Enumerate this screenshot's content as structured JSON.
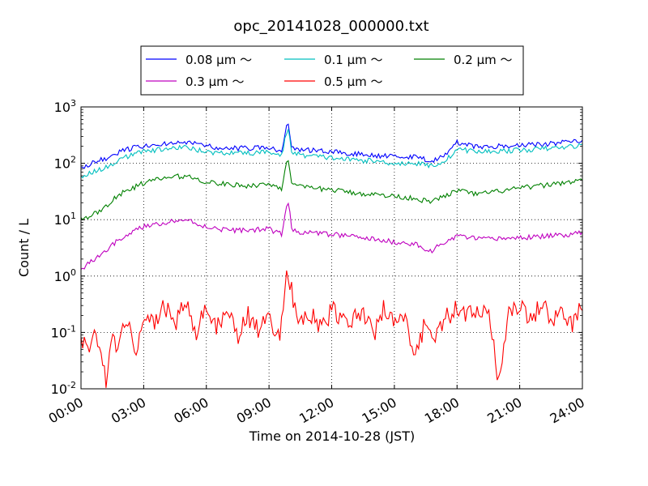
{
  "chart_data": {
    "type": "line",
    "title": "opc_20141028_000000.txt",
    "xlabel": "Time on 2014-10-28 (JST)",
    "ylabel": "Count / L",
    "x_ticks": [
      "00:00",
      "03:00",
      "06:00",
      "09:00",
      "12:00",
      "15:00",
      "18:00",
      "21:00",
      "24:00"
    ],
    "x_range_hours": [
      0,
      24
    ],
    "y_scale": "log",
    "ylim": [
      0.01,
      1000
    ],
    "y_ticks": [
      {
        "base": "10",
        "exp": "-2"
      },
      {
        "base": "10",
        "exp": "-1"
      },
      {
        "base": "10",
        "exp": "0"
      },
      {
        "base": "10",
        "exp": "1"
      },
      {
        "base": "10",
        "exp": "2"
      },
      {
        "base": "10",
        "exp": "3"
      }
    ],
    "grid": true,
    "legend_position": "top-center",
    "legend_columns": 3,
    "series": [
      {
        "name": "0.08 μm ～",
        "color": "#0000ff",
        "x": [
          0,
          0.5,
          1,
          1.5,
          2,
          3,
          4,
          5,
          6,
          7,
          8,
          9,
          9.6,
          9.9,
          10.1,
          10.5,
          11,
          12,
          13,
          14,
          15,
          16,
          16.8,
          17,
          17.5,
          18,
          19,
          20,
          21,
          22,
          23,
          24
        ],
        "y": [
          80,
          100,
          115,
          130,
          170,
          205,
          225,
          240,
          200,
          185,
          185,
          195,
          165,
          580,
          190,
          175,
          170,
          160,
          150,
          140,
          130,
          130,
          110,
          120,
          150,
          235,
          195,
          200,
          210,
          215,
          230,
          260
        ]
      },
      {
        "name": "0.1 μm ～",
        "color": "#00bfbf",
        "x": [
          0,
          0.5,
          1,
          1.5,
          2,
          3,
          4,
          5,
          6,
          7,
          8,
          9,
          9.6,
          9.9,
          10.1,
          10.5,
          11,
          12,
          13,
          14,
          15,
          16,
          16.8,
          17,
          17.5,
          18,
          19,
          20,
          21,
          22,
          23,
          24
        ],
        "y": [
          55,
          70,
          80,
          95,
          125,
          160,
          180,
          190,
          160,
          150,
          150,
          160,
          135,
          450,
          155,
          140,
          135,
          125,
          115,
          110,
          100,
          100,
          90,
          95,
          115,
          180,
          160,
          165,
          170,
          180,
          190,
          210
        ]
      },
      {
        "name": "0.2 μm ～",
        "color": "#008000",
        "x": [
          0,
          0.5,
          1,
          1.5,
          2,
          3,
          4,
          5,
          6,
          7,
          8,
          9,
          9.6,
          9.9,
          10.1,
          10.5,
          11,
          12,
          13,
          14,
          15,
          16,
          16.8,
          17,
          17.5,
          18,
          19,
          20,
          21,
          22,
          23,
          24
        ],
        "y": [
          10,
          12,
          15,
          22,
          30,
          45,
          55,
          60,
          47,
          42,
          40,
          43,
          36,
          135,
          42,
          38,
          36,
          34,
          30,
          28,
          26,
          24,
          20,
          23,
          27,
          33,
          28,
          32,
          36,
          40,
          45,
          50
        ]
      },
      {
        "name": "0.3 μm ～",
        "color": "#bf00bf",
        "x": [
          0,
          0.5,
          1,
          1.5,
          2,
          3,
          4,
          5,
          6,
          7,
          8,
          9,
          9.6,
          9.9,
          10.1,
          10.5,
          11,
          12,
          13,
          14,
          15,
          16,
          16.8,
          17,
          17.5,
          18,
          19,
          20,
          21,
          22,
          23,
          24
        ],
        "y": [
          1.3,
          1.8,
          2.5,
          3.5,
          5,
          7.5,
          9,
          10,
          7.5,
          6.5,
          6.5,
          6.8,
          5.5,
          24,
          6.5,
          6,
          5.8,
          5.5,
          5,
          4.5,
          4,
          3.7,
          2.6,
          3.3,
          4,
          5.2,
          4.5,
          4.6,
          4.8,
          5,
          5.3,
          6
        ]
      },
      {
        "name": "0.5 μm ～",
        "color": "#ff0000",
        "x": [
          0,
          0.3,
          0.6,
          0.9,
          1.2,
          1.5,
          1.8,
          2.1,
          2.4,
          2.7,
          3,
          3.5,
          4,
          4.5,
          5,
          5.5,
          6,
          6.5,
          7,
          7.5,
          8,
          8.5,
          9,
          9.5,
          9.9,
          10.2,
          10.6,
          11,
          11.5,
          12,
          12.5,
          13,
          13.5,
          14,
          14.5,
          15,
          15.5,
          16,
          16.5,
          17,
          17.5,
          18,
          18.5,
          19,
          19.5,
          20,
          20.5,
          21,
          21.5,
          22,
          22.5,
          23,
          23.5,
          24
        ],
        "y": [
          0.1,
          0.04,
          0.15,
          0.06,
          0.013,
          0.1,
          0.05,
          0.18,
          0.09,
          0.05,
          0.25,
          0.12,
          0.3,
          0.15,
          0.35,
          0.1,
          0.25,
          0.12,
          0.28,
          0.09,
          0.2,
          0.1,
          0.18,
          0.09,
          1.25,
          0.3,
          0.15,
          0.22,
          0.12,
          0.25,
          0.15,
          0.18,
          0.25,
          0.08,
          0.3,
          0.12,
          0.25,
          0.03,
          0.18,
          0.09,
          0.2,
          0.25,
          0.18,
          0.3,
          0.22,
          0.013,
          0.25,
          0.3,
          0.15,
          0.35,
          0.18,
          0.25,
          0.12,
          0.3
        ]
      }
    ]
  }
}
